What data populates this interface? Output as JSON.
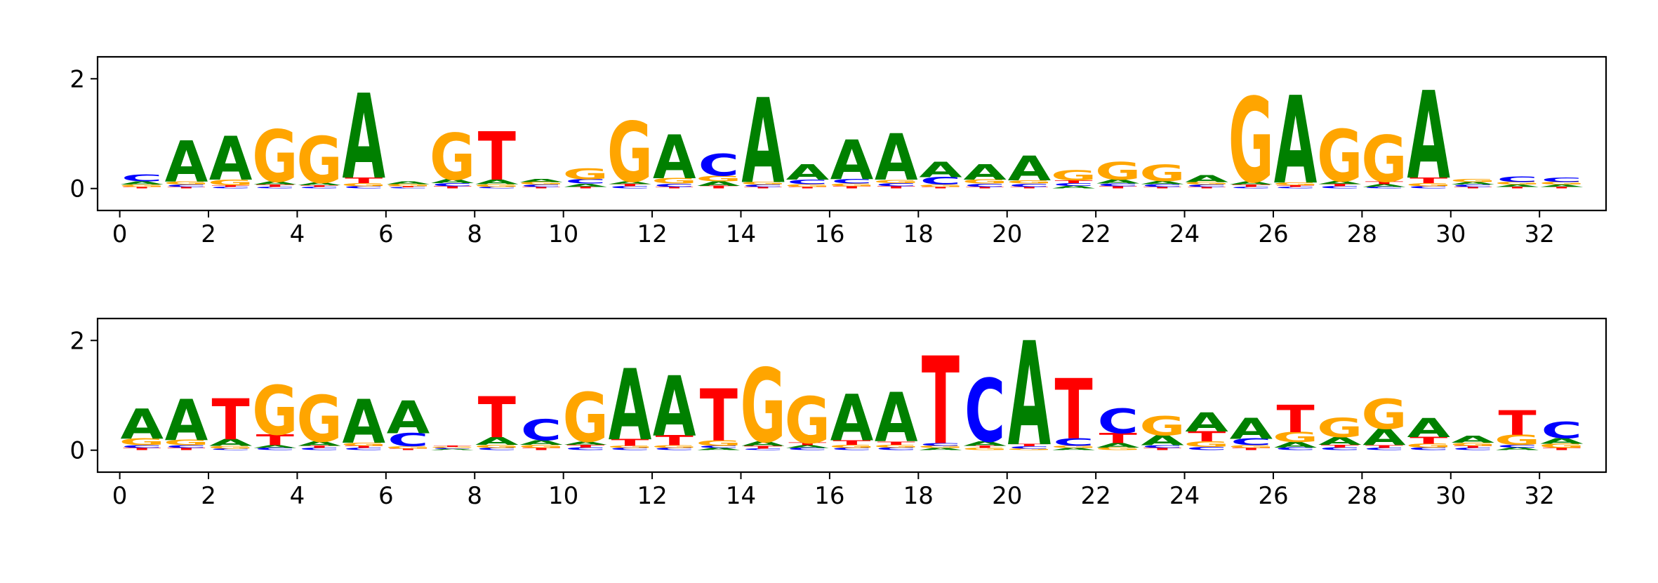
{
  "colors": {
    "A": "#008000",
    "C": "#0000ff",
    "G": "#ffa500",
    "T": "#ff0000",
    "axis": "#000000"
  },
  "chart_data": [
    {
      "type": "sequence-logo",
      "title": "",
      "xlabel": "",
      "ylabel": "",
      "xlim": [
        -0.5,
        33.5
      ],
      "ylim": [
        -0.4,
        2.4
      ],
      "xticks": [
        0,
        2,
        4,
        6,
        8,
        10,
        12,
        14,
        16,
        18,
        20,
        22,
        24,
        26,
        28,
        30,
        32
      ],
      "xtick_labels": [
        "0",
        "2",
        "4",
        "6",
        "8",
        "10",
        "12",
        "14",
        "16",
        "18",
        "20",
        "22",
        "24",
        "26",
        "28",
        "30",
        "32"
      ],
      "yticks": [
        0,
        2
      ],
      "ytick_labels": [
        "0",
        "2"
      ],
      "positions": [
        {
          "x": 0.5,
          "A": 0.06,
          "C": 0.12,
          "G": 0.04,
          "T": 0.03
        },
        {
          "x": 1.5,
          "A": 0.75,
          "C": 0.04,
          "G": 0.06,
          "T": 0.03
        },
        {
          "x": 2.5,
          "A": 0.8,
          "C": 0.03,
          "G": 0.1,
          "T": 0.03
        },
        {
          "x": 3.5,
          "A": 0.06,
          "C": 0.03,
          "G": 0.95,
          "T": 0.04
        },
        {
          "x": 4.5,
          "A": 0.05,
          "C": 0.03,
          "G": 0.85,
          "T": 0.03
        },
        {
          "x": 5.5,
          "A": 1.55,
          "C": 0.04,
          "G": 0.06,
          "T": 0.1
        },
        {
          "x": 6.5,
          "A": 0.05,
          "C": 0.02,
          "G": 0.04,
          "T": 0.02
        },
        {
          "x": 7.5,
          "A": 0.07,
          "C": 0.06,
          "G": 0.85,
          "T": 0.04
        },
        {
          "x": 8.5,
          "A": 0.08,
          "C": 0.03,
          "G": 0.05,
          "T": 0.88
        },
        {
          "x": 9.5,
          "A": 0.06,
          "C": 0.04,
          "G": 0.05,
          "T": 0.03
        },
        {
          "x": 10.5,
          "A": 0.06,
          "C": 0.08,
          "G": 0.2,
          "T": 0.03
        },
        {
          "x": 11.5,
          "A": 0.05,
          "C": 0.04,
          "G": 1.1,
          "T": 0.04
        },
        {
          "x": 12.5,
          "A": 0.8,
          "C": 0.06,
          "G": 0.1,
          "T": 0.03
        },
        {
          "x": 13.5,
          "A": 0.08,
          "C": 0.4,
          "G": 0.1,
          "T": 0.05
        },
        {
          "x": 14.5,
          "A": 1.55,
          "C": 0.04,
          "G": 0.05,
          "T": 0.03
        },
        {
          "x": 15.5,
          "A": 0.28,
          "C": 0.08,
          "G": 0.05,
          "T": 0.03
        },
        {
          "x": 16.5,
          "A": 0.72,
          "C": 0.08,
          "G": 0.05,
          "T": 0.04
        },
        {
          "x": 17.5,
          "A": 0.85,
          "C": 0.06,
          "G": 0.06,
          "T": 0.04
        },
        {
          "x": 18.5,
          "A": 0.28,
          "C": 0.14,
          "G": 0.04,
          "T": 0.03
        },
        {
          "x": 19.5,
          "A": 0.28,
          "C": 0.06,
          "G": 0.07,
          "T": 0.03
        },
        {
          "x": 20.5,
          "A": 0.45,
          "C": 0.06,
          "G": 0.06,
          "T": 0.03
        },
        {
          "x": 21.5,
          "A": 0.05,
          "C": 0.05,
          "G": 0.18,
          "T": 0.05
        },
        {
          "x": 22.5,
          "A": 0.07,
          "C": 0.05,
          "G": 0.32,
          "T": 0.04
        },
        {
          "x": 23.5,
          "A": 0.06,
          "C": 0.05,
          "G": 0.3,
          "T": 0.03
        },
        {
          "x": 24.5,
          "A": 0.12,
          "C": 0.04,
          "G": 0.05,
          "T": 0.03
        },
        {
          "x": 25.5,
          "A": 0.06,
          "C": 0.03,
          "G": 1.55,
          "T": 0.04
        },
        {
          "x": 26.5,
          "A": 1.6,
          "C": 0.03,
          "G": 0.05,
          "T": 0.03
        },
        {
          "x": 27.5,
          "A": 0.06,
          "C": 0.04,
          "G": 0.95,
          "T": 0.04
        },
        {
          "x": 28.5,
          "A": 0.05,
          "C": 0.03,
          "G": 0.85,
          "T": 0.05
        },
        {
          "x": 29.5,
          "A": 1.6,
          "C": 0.04,
          "G": 0.06,
          "T": 0.1
        },
        {
          "x": 30.5,
          "A": 0.05,
          "C": 0.04,
          "G": 0.06,
          "T": 0.03
        },
        {
          "x": 31.5,
          "A": 0.04,
          "C": 0.1,
          "G": 0.05,
          "T": 0.03
        },
        {
          "x": 32.5,
          "A": 0.04,
          "C": 0.08,
          "G": 0.05,
          "T": 0.03
        }
      ]
    },
    {
      "type": "sequence-logo",
      "title": "",
      "xlabel": "",
      "ylabel": "",
      "xlim": [
        -0.5,
        33.5
      ],
      "ylim": [
        -0.4,
        2.4
      ],
      "xticks": [
        0,
        2,
        4,
        6,
        8,
        10,
        12,
        14,
        16,
        18,
        20,
        22,
        24,
        26,
        28,
        30,
        32
      ],
      "xtick_labels": [
        "0",
        "2",
        "4",
        "6",
        "8",
        "10",
        "12",
        "14",
        "16",
        "18",
        "20",
        "22",
        "24",
        "26",
        "28",
        "30",
        "32"
      ],
      "yticks": [
        0,
        2
      ],
      "ytick_labels": [
        "0",
        "2"
      ],
      "positions": [
        {
          "x": 0.5,
          "A": 0.55,
          "C": 0.05,
          "G": 0.12,
          "T": 0.04
        },
        {
          "x": 1.5,
          "A": 0.75,
          "C": 0.05,
          "G": 0.1,
          "T": 0.04
        },
        {
          "x": 2.5,
          "A": 0.12,
          "C": 0.03,
          "G": 0.05,
          "T": 0.75
        },
        {
          "x": 3.5,
          "A": 0.05,
          "C": 0.04,
          "G": 0.9,
          "T": 0.2
        },
        {
          "x": 4.5,
          "A": 0.08,
          "C": 0.04,
          "G": 0.85,
          "T": 0.04
        },
        {
          "x": 5.5,
          "A": 0.8,
          "C": 0.04,
          "G": 0.06,
          "T": 0.04
        },
        {
          "x": 6.5,
          "A": 0.6,
          "C": 0.24,
          "G": 0.04,
          "T": 0.03
        },
        {
          "x": 7.5,
          "A": 0.02,
          "C": 0.02,
          "G": 0.02,
          "T": 0.02
        },
        {
          "x": 8.5,
          "A": 0.14,
          "C": 0.04,
          "G": 0.06,
          "T": 0.75
        },
        {
          "x": 9.5,
          "A": 0.08,
          "C": 0.38,
          "G": 0.06,
          "T": 0.04
        },
        {
          "x": 10.5,
          "A": 0.06,
          "C": 0.05,
          "G": 0.9,
          "T": 0.05
        },
        {
          "x": 11.5,
          "A": 1.3,
          "C": 0.04,
          "G": 0.04,
          "T": 0.12
        },
        {
          "x": 12.5,
          "A": 1.1,
          "C": 0.04,
          "G": 0.05,
          "T": 0.18
        },
        {
          "x": 13.5,
          "A": 0.04,
          "C": 0.04,
          "G": 0.1,
          "T": 0.95
        },
        {
          "x": 14.5,
          "A": 0.08,
          "C": 0.03,
          "G": 1.35,
          "T": 0.05
        },
        {
          "x": 15.5,
          "A": 0.05,
          "C": 0.04,
          "G": 0.85,
          "T": 0.05
        },
        {
          "x": 16.5,
          "A": 0.85,
          "C": 0.04,
          "G": 0.06,
          "T": 0.08
        },
        {
          "x": 17.5,
          "A": 0.9,
          "C": 0.05,
          "G": 0.05,
          "T": 0.06
        },
        {
          "x": 18.5,
          "A": 0.04,
          "C": 0.05,
          "G": 0.04,
          "T": 1.6
        },
        {
          "x": 19.5,
          "A": 0.08,
          "C": 1.15,
          "G": 0.04,
          "T": 0.04
        },
        {
          "x": 20.5,
          "A": 1.9,
          "C": 0.04,
          "G": 0.03,
          "T": 0.04
        },
        {
          "x": 21.5,
          "A": 0.04,
          "C": 0.14,
          "G": 0.04,
          "T": 1.1
        },
        {
          "x": 22.5,
          "A": 0.08,
          "C": 0.45,
          "G": 0.05,
          "T": 0.18
        },
        {
          "x": 23.5,
          "A": 0.18,
          "C": 0.05,
          "G": 0.35,
          "T": 0.04
        },
        {
          "x": 24.5,
          "A": 0.35,
          "C": 0.06,
          "G": 0.1,
          "T": 0.18
        },
        {
          "x": 25.5,
          "A": 0.38,
          "C": 0.12,
          "G": 0.05,
          "T": 0.04
        },
        {
          "x": 26.5,
          "A": 0.1,
          "C": 0.05,
          "G": 0.18,
          "T": 0.5
        },
        {
          "x": 27.5,
          "A": 0.14,
          "C": 0.05,
          "G": 0.35,
          "T": 0.05
        },
        {
          "x": 28.5,
          "A": 0.3,
          "C": 0.04,
          "G": 0.55,
          "T": 0.05
        },
        {
          "x": 29.5,
          "A": 0.35,
          "C": 0.05,
          "G": 0.07,
          "T": 0.12
        },
        {
          "x": 30.5,
          "A": 0.12,
          "C": 0.04,
          "G": 0.06,
          "T": 0.04
        },
        {
          "x": 31.5,
          "A": 0.05,
          "C": 0.05,
          "G": 0.18,
          "T": 0.45
        },
        {
          "x": 32.5,
          "A": 0.1,
          "C": 0.3,
          "G": 0.08,
          "T": 0.04
        }
      ]
    }
  ]
}
